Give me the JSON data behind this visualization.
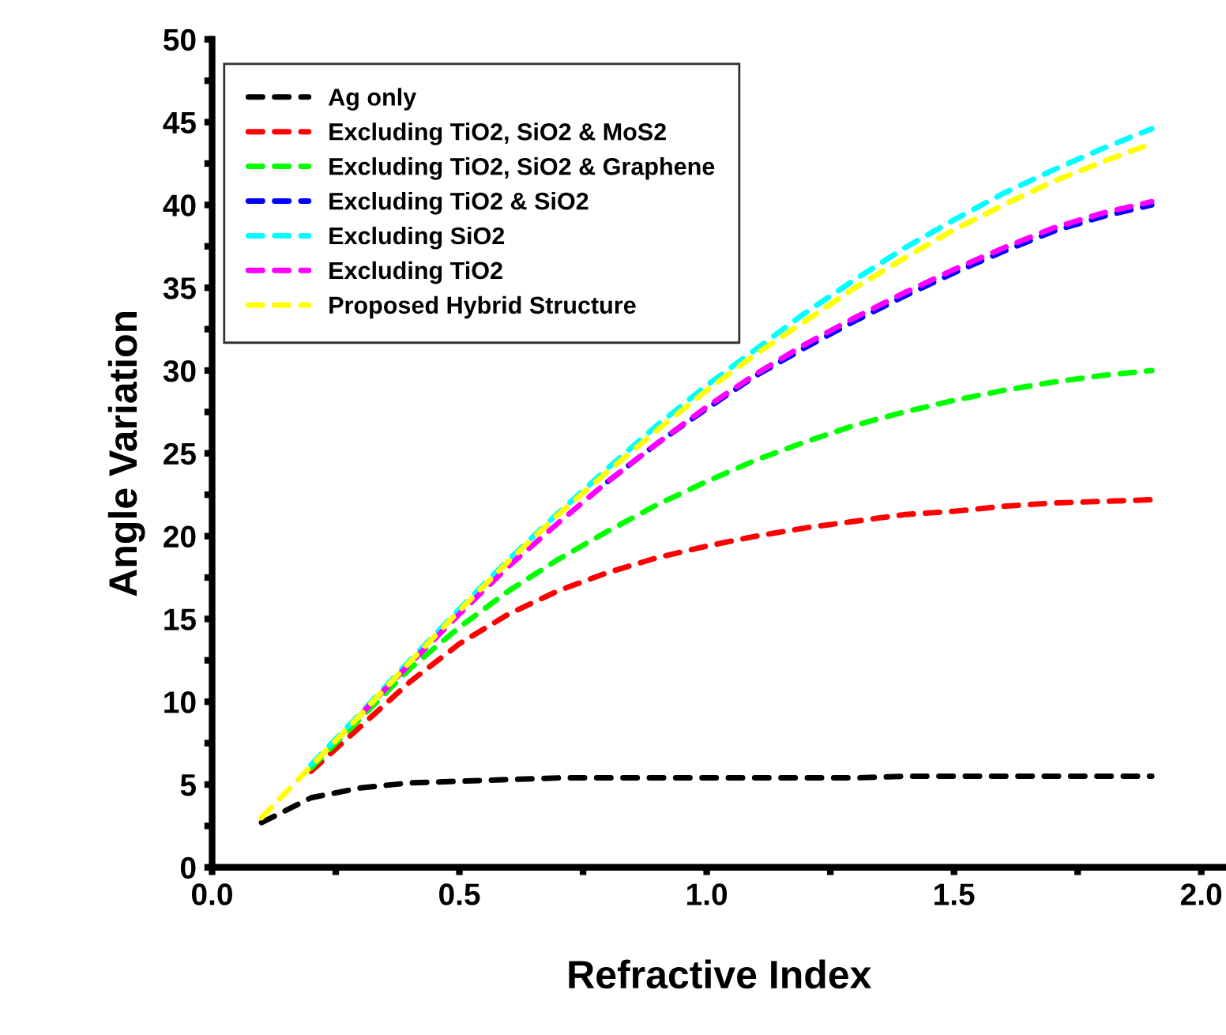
{
  "chart_data": {
    "type": "line",
    "xlabel": "Refractive Index",
    "ylabel": "Angle Variation",
    "x": [
      0.1,
      0.2,
      0.3,
      0.4,
      0.5,
      0.6,
      0.7,
      0.8,
      0.9,
      1.0,
      1.1,
      1.2,
      1.3,
      1.4,
      1.5,
      1.6,
      1.7,
      1.8,
      1.9
    ],
    "xlim": [
      0,
      2.05
    ],
    "xticks": [
      {
        "value": 0,
        "label": "0.0"
      },
      {
        "value": 0.25,
        "label": null
      },
      {
        "value": 0.5,
        "label": "0.5"
      },
      {
        "value": 0.75,
        "label": null
      },
      {
        "value": 1,
        "label": "1.0"
      },
      {
        "value": 1.25,
        "label": null
      },
      {
        "value": 1.5,
        "label": "1.5"
      },
      {
        "value": 1.75,
        "label": null
      },
      {
        "value": 2,
        "label": "2.0"
      }
    ],
    "ylim": [
      0,
      50
    ],
    "yticks": [
      0,
      {
        "value": 2.5,
        "label": null
      },
      5,
      {
        "value": 7.5,
        "label": null
      },
      10,
      {
        "value": 12.5,
        "label": null
      },
      15,
      {
        "value": 17.5,
        "label": null
      },
      20,
      {
        "value": 22.5,
        "label": null
      },
      25,
      {
        "value": 27.5,
        "label": null
      },
      30,
      {
        "value": 32.5,
        "label": null
      },
      35,
      {
        "value": 37.5,
        "label": null
      },
      40,
      {
        "value": 42.5,
        "label": null
      },
      45,
      {
        "value": 47.5,
        "label": null
      },
      50
    ],
    "line_style": "dashed",
    "marker": "none",
    "grid": false,
    "legend": "top left",
    "series": [
      {
        "name": "Ag only",
        "color": "#000000",
        "values": [
          2.7,
          4.2,
          4.8,
          5.1,
          5.2,
          5.3,
          5.4,
          5.4,
          5.4,
          5.4,
          5.4,
          5.4,
          5.4,
          5.5,
          5.5,
          5.5,
          5.5,
          5.5,
          5.5
        ]
      },
      {
        "name": "Excluding TiO2, SiO2 & MoS2",
        "color": "#ff0000",
        "values": [
          null,
          5.8,
          8.5,
          11.2,
          13.5,
          15.3,
          16.7,
          17.8,
          18.7,
          19.4,
          20.0,
          20.5,
          20.9,
          21.3,
          21.5,
          21.8,
          22.0,
          22.1,
          22.2
        ]
      },
      {
        "name": "Excluding TiO2, SiO2 & Graphene",
        "color": "#00ff00",
        "values": [
          null,
          6,
          9,
          12,
          14.5,
          16.7,
          18.6,
          20.3,
          21.9,
          23.3,
          24.6,
          25.7,
          26.7,
          27.5,
          28.2,
          28.8,
          29.3,
          29.7,
          30.0
        ]
      },
      {
        "name": "Excluding TiO2 & SiO2",
        "color": "#0000ff",
        "values": [
          null,
          null,
          null,
          null,
          null,
          null,
          null,
          23.3,
          25.6,
          27.7,
          29.7,
          31.4,
          33.0,
          34.5,
          35.9,
          37.2,
          38.4,
          39.3,
          40.0
        ]
      },
      {
        "name": "Excluding SiO2",
        "color": "#00ffff",
        "values": [
          null,
          6.2,
          9.3,
          12.5,
          15.6,
          18.6,
          21.4,
          24.1,
          26.7,
          29.1,
          31.3,
          33.5,
          35.5,
          37.4,
          39.1,
          40.7,
          42.1,
          43.4,
          44.6
        ]
      },
      {
        "name": "Excluding TiO2",
        "color": "#ff00ff",
        "values": [
          null,
          null,
          9.2,
          12.3,
          15.3,
          18.2,
          20.8,
          23.3,
          25.6,
          27.8,
          29.8,
          31.6,
          33.2,
          34.7,
          36.1,
          37.4,
          38.6,
          39.5,
          40.2
        ]
      },
      {
        "name": "Proposed Hybrid Structure",
        "color": "#ffff00",
        "values": [
          3,
          6.1,
          9.2,
          12.4,
          15.5,
          18.5,
          21.3,
          23.9,
          26.4,
          28.8,
          31.0,
          33.0,
          35.0,
          36.8,
          38.5,
          40.0,
          41.4,
          42.6,
          43.7
        ]
      }
    ]
  }
}
